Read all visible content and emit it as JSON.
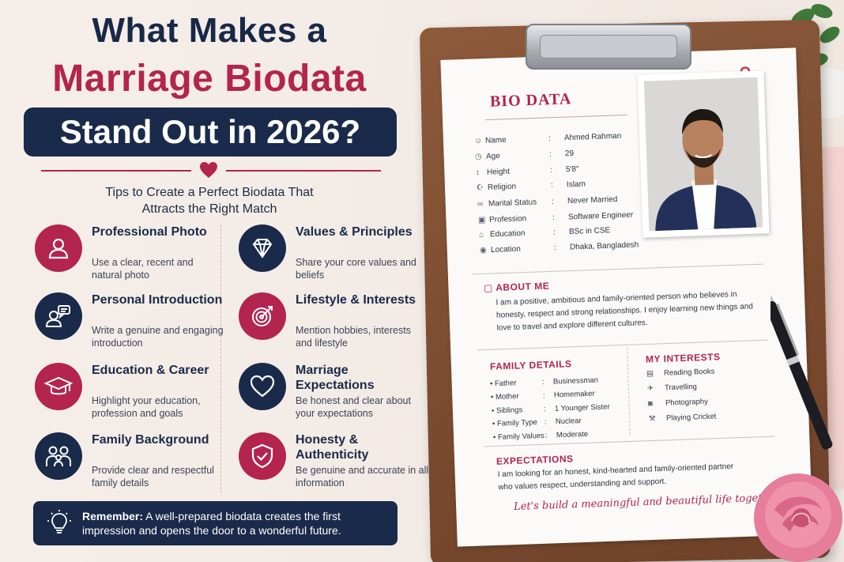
{
  "headline": {
    "line1": "What Makes a",
    "line2": "Marriage Biodata",
    "line3": "Stand Out in 2026?"
  },
  "subtitle": {
    "line1": "Tips to Create a Perfect Biodata That",
    "line2": "Attracts the Right Match"
  },
  "tips": [
    {
      "title": "Professional Photo",
      "desc": "Use a clear, recent and natural photo",
      "icon": "person-icon"
    },
    {
      "title": "Values & Principles",
      "desc": "Share your core values and beliefs",
      "icon": "diamond-icon"
    },
    {
      "title": "Personal Introduction",
      "desc": "Write a genuine and engaging introduction",
      "icon": "chat-person-icon"
    },
    {
      "title": "Lifestyle & Interests",
      "desc": "Mention hobbies, interests and lifestyle",
      "icon": "target-icon"
    },
    {
      "title": "Education & Career",
      "desc": "Highlight your education, profession and goals",
      "icon": "graduation-cap-icon"
    },
    {
      "title": "Marriage Expectations",
      "desc": "Be honest and clear about your expectations",
      "icon": "heart-icon"
    },
    {
      "title": "Family Background",
      "desc": "Provide clear and respectful family details",
      "icon": "family-icon"
    },
    {
      "title": "Honesty & Authenticity",
      "desc": "Be genuine and accurate in all information",
      "icon": "shield-check-icon"
    }
  ],
  "remember": {
    "label": "Remember:",
    "text": " A well-prepared biodata creates the first impression and opens the door to a wonderful future."
  },
  "biodata": {
    "title": "BIO DATA",
    "fields": [
      {
        "label": "Name",
        "value": "Ahmed Rahman",
        "icon": "user-icon"
      },
      {
        "label": "Age",
        "value": "29",
        "icon": "clock-icon"
      },
      {
        "label": "Height",
        "value": "5'8\"",
        "icon": "height-icon"
      },
      {
        "label": "Religion",
        "value": "Islam",
        "icon": "religion-icon"
      },
      {
        "label": "Marital Status",
        "value": "Never Married",
        "icon": "rings-icon"
      },
      {
        "label": "Profession",
        "value": "Software Engineer",
        "icon": "briefcase-icon"
      },
      {
        "label": "Education",
        "value": "BSc in CSE",
        "icon": "cap-icon"
      },
      {
        "label": "Location",
        "value": "Dhaka, Bangladesh",
        "icon": "pin-icon"
      }
    ],
    "about": {
      "title": "ABOUT ME",
      "text": "I am a positive, ambitious and family-oriented person who believes in honesty, respect and strong relationships. I enjoy learning new things and love to travel and explore different cultures."
    },
    "family": {
      "title": "FAMILY DETAILS",
      "rows": [
        {
          "label": "Father",
          "value": "Businessman"
        },
        {
          "label": "Mother",
          "value": "Homemaker"
        },
        {
          "label": "Siblings",
          "value": "1 Younger Sister"
        },
        {
          "label": "Family Type",
          "value": "Nuclear"
        },
        {
          "label": "Family Values",
          "value": "Moderate"
        }
      ]
    },
    "interests": {
      "title": "MY INTERESTS",
      "items": [
        {
          "label": "Reading Books",
          "icon": "book-icon"
        },
        {
          "label": "Travelling",
          "icon": "plane-icon"
        },
        {
          "label": "Photography",
          "icon": "camera-icon"
        },
        {
          "label": "Playing Cricket",
          "icon": "cricket-icon"
        }
      ]
    },
    "expectations": {
      "title": "EXPECTATIONS",
      "text": "I am looking for an honest, kind-hearted and family-oriented partner who values respect, understanding and support."
    },
    "quote": "Let's build a meaningful and beautiful life together."
  },
  "colors": {
    "navy": "#1a2a4a",
    "accent": "#b3244f",
    "paper": "#fbfaf8",
    "board": "#7a4a2f"
  }
}
